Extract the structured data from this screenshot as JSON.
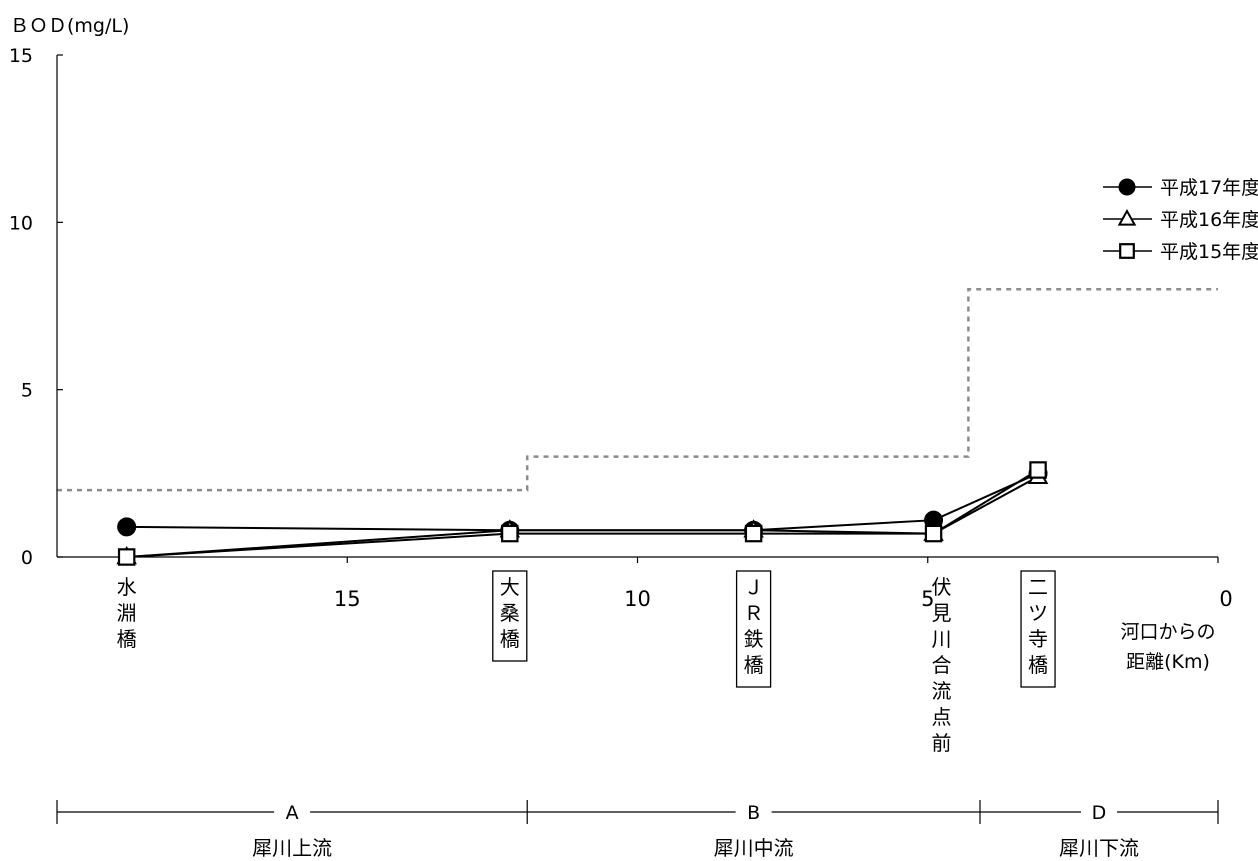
{
  "chart_data": {
    "type": "line",
    "ylabel": "ＢＯＤ(mg/L)",
    "xlabel": [
      "河口からの",
      "距離(Km)"
    ],
    "x_reversed": true,
    "xlim": [
      20,
      0
    ],
    "ylim": [
      0,
      15
    ],
    "x_ticks": [
      15,
      10,
      5,
      0
    ],
    "y_ticks": [
      0,
      5,
      10,
      15
    ],
    "grid": false,
    "legend_position": "right",
    "series": [
      {
        "name": "平成17年度",
        "marker": "filled-circle",
        "x": [
          18.8,
          12.2,
          8.0,
          4.9,
          3.1
        ],
        "y": [
          0.9,
          0.8,
          0.8,
          1.1,
          2.5
        ]
      },
      {
        "name": "平成16年度",
        "marker": "open-triangle",
        "x": [
          18.8,
          12.2,
          8.0,
          4.9,
          3.1
        ],
        "y": [
          0.0,
          0.8,
          0.8,
          0.7,
          2.4
        ]
      },
      {
        "name": "平成15年度",
        "marker": "open-square",
        "x": [
          18.8,
          12.2,
          8.0,
          4.9,
          3.1
        ],
        "y": [
          0.0,
          0.7,
          0.7,
          0.7,
          2.6
        ]
      }
    ],
    "standard_line": {
      "style": "dashed-gray",
      "steps": [
        {
          "x_from": 20.0,
          "x_to": 11.9,
          "y": 2
        },
        {
          "x_from": 11.9,
          "x_to": 4.3,
          "y": 3
        },
        {
          "x_from": 4.3,
          "x_to": 0.0,
          "y": 8
        }
      ]
    },
    "stations": [
      {
        "label": "水淵橋",
        "x": 18.8,
        "boxed": false
      },
      {
        "label": "大桑橋",
        "x": 12.2,
        "boxed": true
      },
      {
        "label": "ＪＲ鉄橋",
        "x": 8.0,
        "boxed": true
      },
      {
        "label": "伏見川合流点前",
        "x": 4.9,
        "boxed": false
      },
      {
        "label": "二ツ寺橋",
        "x": 3.1,
        "boxed": true
      }
    ],
    "sections": [
      {
        "code": "A",
        "name": "犀川上流",
        "x_from": 20.0,
        "x_to": 11.9
      },
      {
        "code": "B",
        "name": "犀川中流",
        "x_from": 11.9,
        "x_to": 4.1
      },
      {
        "code": "D",
        "name": "犀川下流",
        "x_from": 4.1,
        "x_to": 0.0
      }
    ]
  }
}
